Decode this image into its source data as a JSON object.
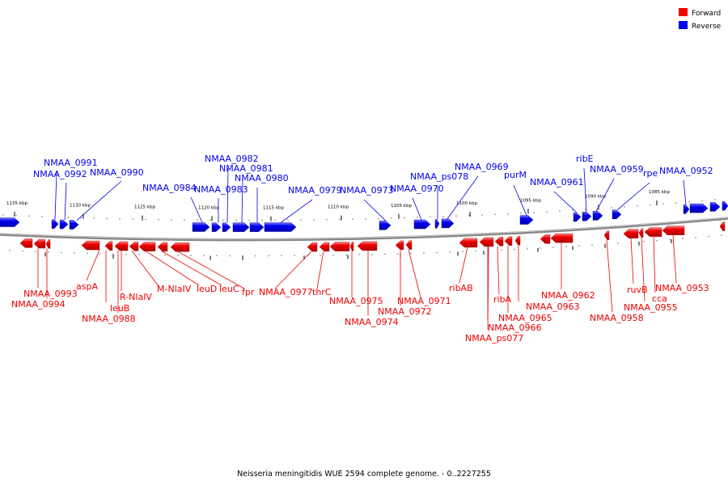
{
  "legend": [
    {
      "label": "Forward",
      "color": "#ee0000"
    },
    {
      "label": "Reverse",
      "color": "#0000ee"
    }
  ],
  "caption": "Neisseria meningitidis WUE 2594 complete genome. - 0..2227255",
  "axis_ticks": [
    "1135 kbp",
    "1130 kbp",
    "1125 kbp",
    "1120 kbp",
    "1115 kbp",
    "1110 kbp",
    "1105 kbp",
    "1100 kbp",
    "1095 kbp",
    "1090 kbp",
    "1085 kbp"
  ],
  "reverse_genes": [
    "NMAA_0991",
    "NMAA_0992",
    "NMAA_0990",
    "NMAA_0984",
    "NMAA_0982",
    "NMAA_0983",
    "NMAA_0981",
    "NMAA_0980",
    "NMAA_0979",
    "NMAA_0973",
    "NMAA_ps078",
    "NMAA_0970",
    "NMAA_0969",
    "purM",
    "NMAA_0961",
    "ribE",
    "NMAA_0959",
    "rpe",
    "NMAA_0952"
  ],
  "forward_genes": [
    "NMAA_0993",
    "NMAA_0994",
    "aspA",
    "leuB",
    "NMAA_0988",
    "R-NlaIV",
    "M-NlaIV",
    "leuD",
    "leuC",
    "fpr",
    "NMAA_0977",
    "thrC",
    "NMAA_0975",
    "NMAA_0974",
    "NMAA_0972",
    "NMAA_0971",
    "ribAB",
    "ribA",
    "NMAA_0966",
    "NMAA_ps077",
    "NMAA_0965",
    "NMAA_0963",
    "NMAA_0962",
    "NMAA_0958",
    "ruvB",
    "NMAA_0955",
    "cca",
    "NMAA_0953"
  ]
}
